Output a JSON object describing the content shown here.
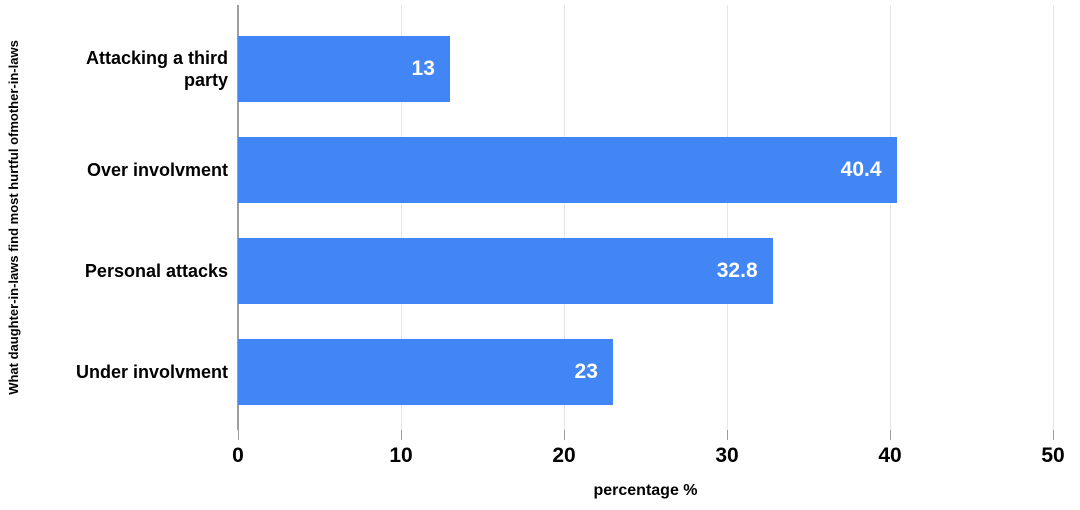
{
  "chart_data": {
    "type": "bar",
    "orientation": "horizontal",
    "title": "",
    "categories": [
      "Attacking a third party",
      "Over involvment",
      "Personal attacks",
      "Under involvment"
    ],
    "values": [
      13,
      40.4,
      32.8,
      23
    ],
    "value_labels": [
      "13",
      "40.4",
      "32.8",
      "23"
    ],
    "ylabel": "What daughter-in-laws find most hurtful ofmother-in-laws",
    "xlabel": "percentage %",
    "xlim": [
      0,
      50
    ],
    "xticks": [
      0,
      10,
      20,
      30,
      40,
      50
    ],
    "grid": true,
    "legend_position": "none",
    "colors": {
      "bar": "#4285f4",
      "value_label": "#ffffff",
      "gridline": "#e6e6e6",
      "axis_line": "#9e9e9e",
      "tick_mark": "#9e9e9e",
      "text": "#000000",
      "background": "#ffffff"
    }
  }
}
